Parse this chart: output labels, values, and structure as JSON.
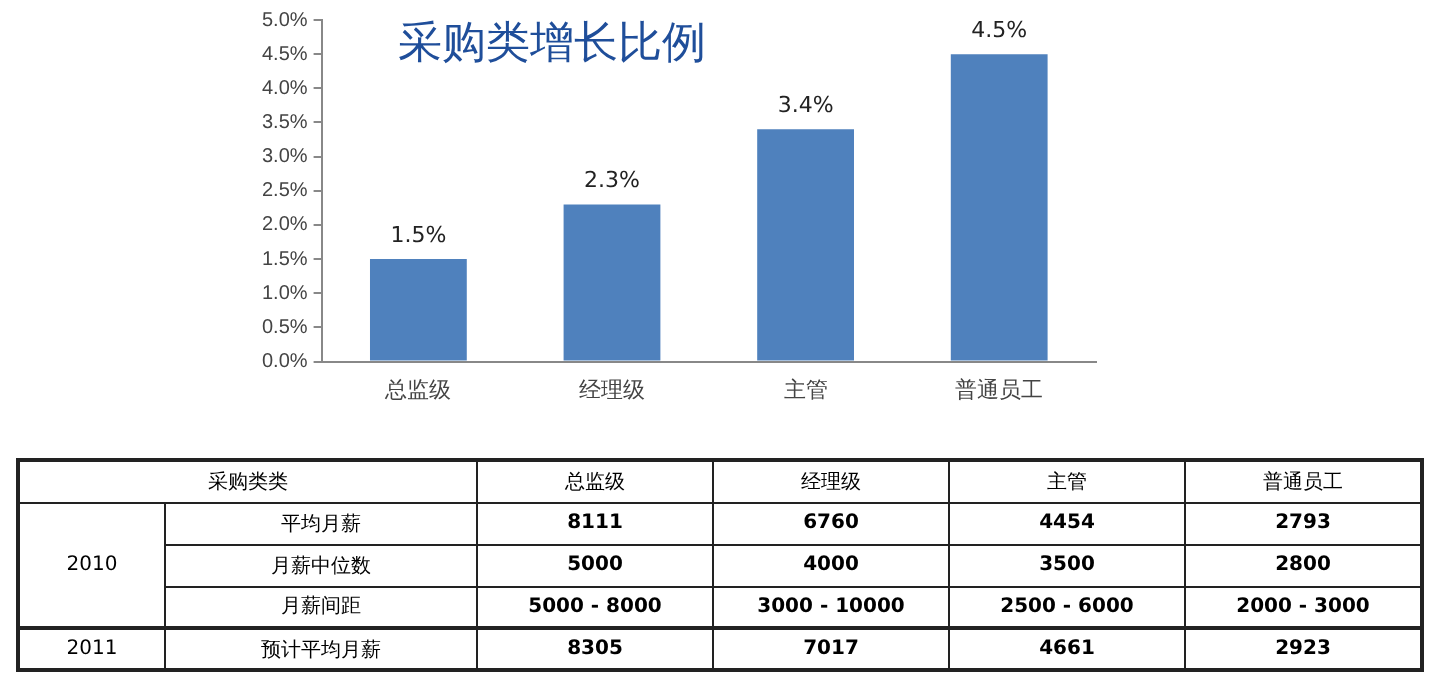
{
  "chart_data": [
    {
      "type": "bar",
      "title": "采购类增长比例",
      "categories": [
        "总监级",
        "经理级",
        "主管",
        "普通员工"
      ],
      "values": [
        1.5,
        2.3,
        3.4,
        4.5
      ],
      "color": "#4f81bd",
      "value_labels": [
        "1.5%",
        "2.3%",
        "3.4%",
        "4.5%"
      ],
      "ylim": [
        0,
        5
      ],
      "yticks": [
        {
          "value": 0,
          "label": "0.0%"
        },
        {
          "value": 0.5,
          "label": "0.5%"
        },
        {
          "value": 1,
          "label": "1.0%"
        },
        {
          "value": 1.5,
          "label": "1.5%"
        },
        {
          "value": 2,
          "label": "2.0%"
        },
        {
          "value": 2.5,
          "label": "2.5%"
        },
        {
          "value": 3,
          "label": "3.0%"
        },
        {
          "value": 3.5,
          "label": "3.5%"
        },
        {
          "value": 4,
          "label": "4.0%"
        },
        {
          "value": 4.5,
          "label": "4.5%"
        },
        {
          "value": 5,
          "label": "5.0%"
        }
      ],
      "grid": false,
      "legend": false
    },
    {
      "type": "other",
      "categories": [
        "采购类类",
        "总监级",
        "经理级",
        "主管",
        "普通员工"
      ],
      "y_categories": [
        "2010",
        null,
        null,
        "2011"
      ],
      "y2_categories": [
        "平均月薪",
        "月薪中位数",
        "月薪间距",
        "预计平均月薪"
      ],
      "cell_labels": [
        [
          "8111",
          "6760",
          "4454",
          "2793"
        ],
        [
          "5000",
          "4000",
          "3500",
          "2800"
        ],
        [
          "5000 - 8000",
          "3000 - 10000",
          "2500 - 6000",
          "2000 - 3000"
        ],
        [
          "8305",
          "7017",
          "4661",
          "2923"
        ]
      ]
    }
  ]
}
